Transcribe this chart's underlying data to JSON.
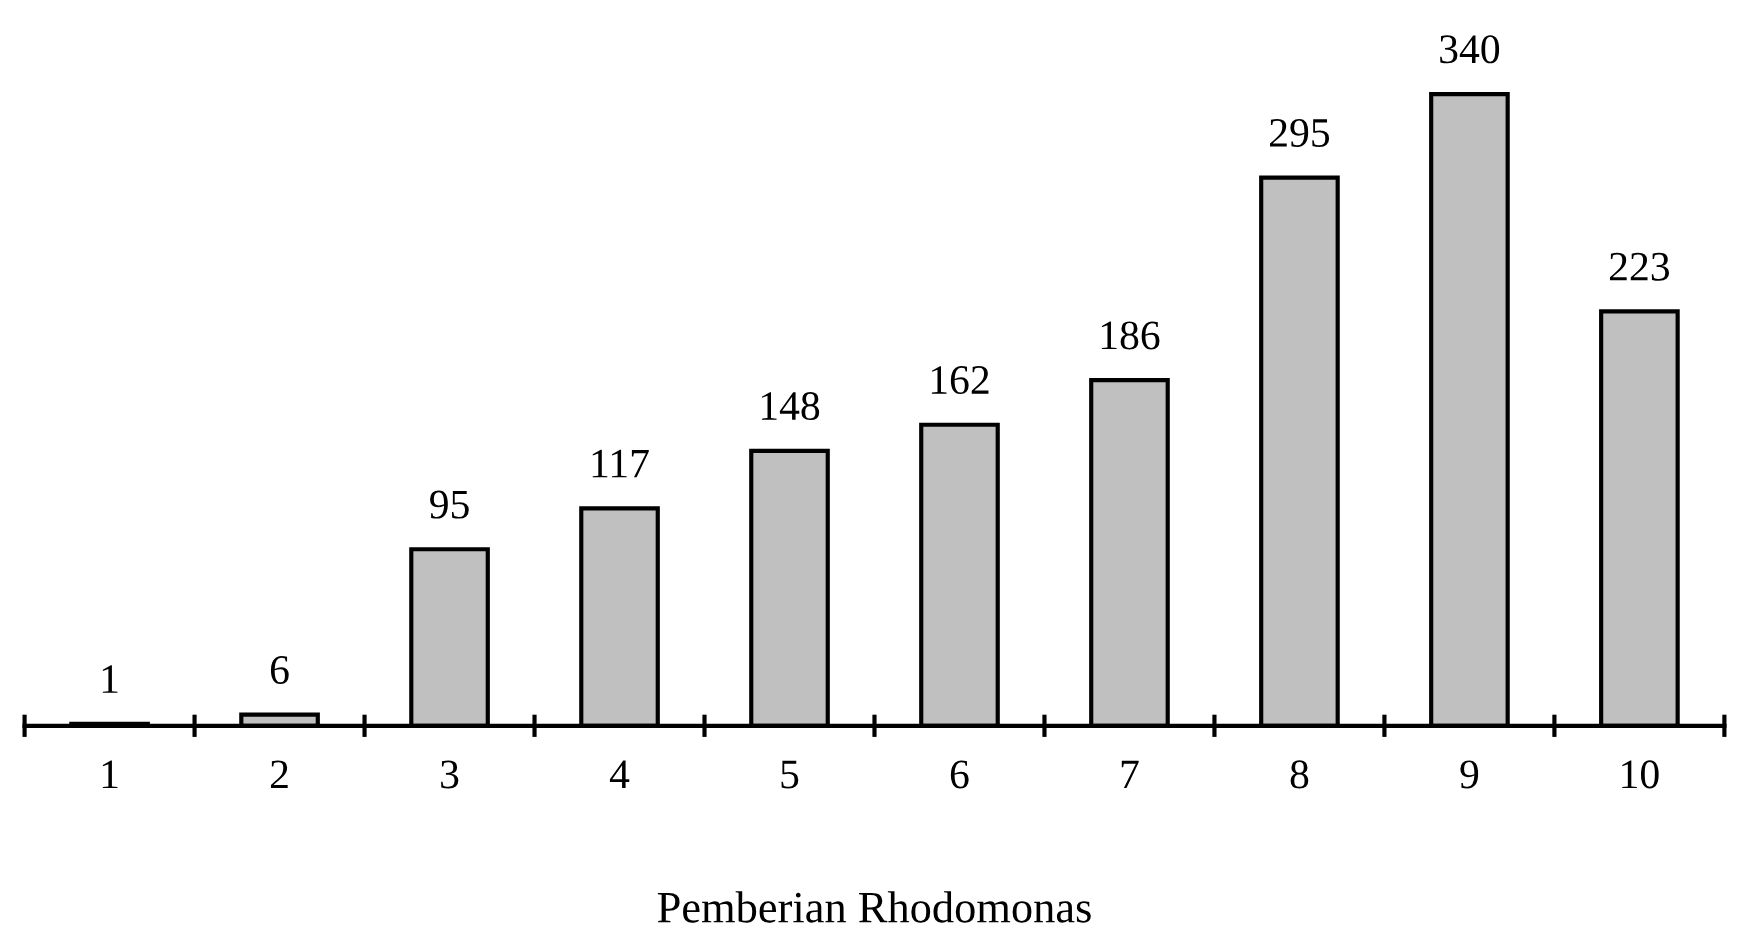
{
  "chart_data": {
    "type": "bar",
    "xlabel": "Pemberian Rhodomonas",
    "categories": [
      "1",
      "2",
      "3",
      "4",
      "5",
      "6",
      "7",
      "8",
      "9",
      "10"
    ],
    "values": [
      1,
      6,
      95,
      117,
      148,
      162,
      186,
      295,
      340,
      223
    ],
    "color": "#c0c0c0",
    "data_labels": true,
    "tick_labels": "x",
    "grid": false,
    "legend": false
  }
}
